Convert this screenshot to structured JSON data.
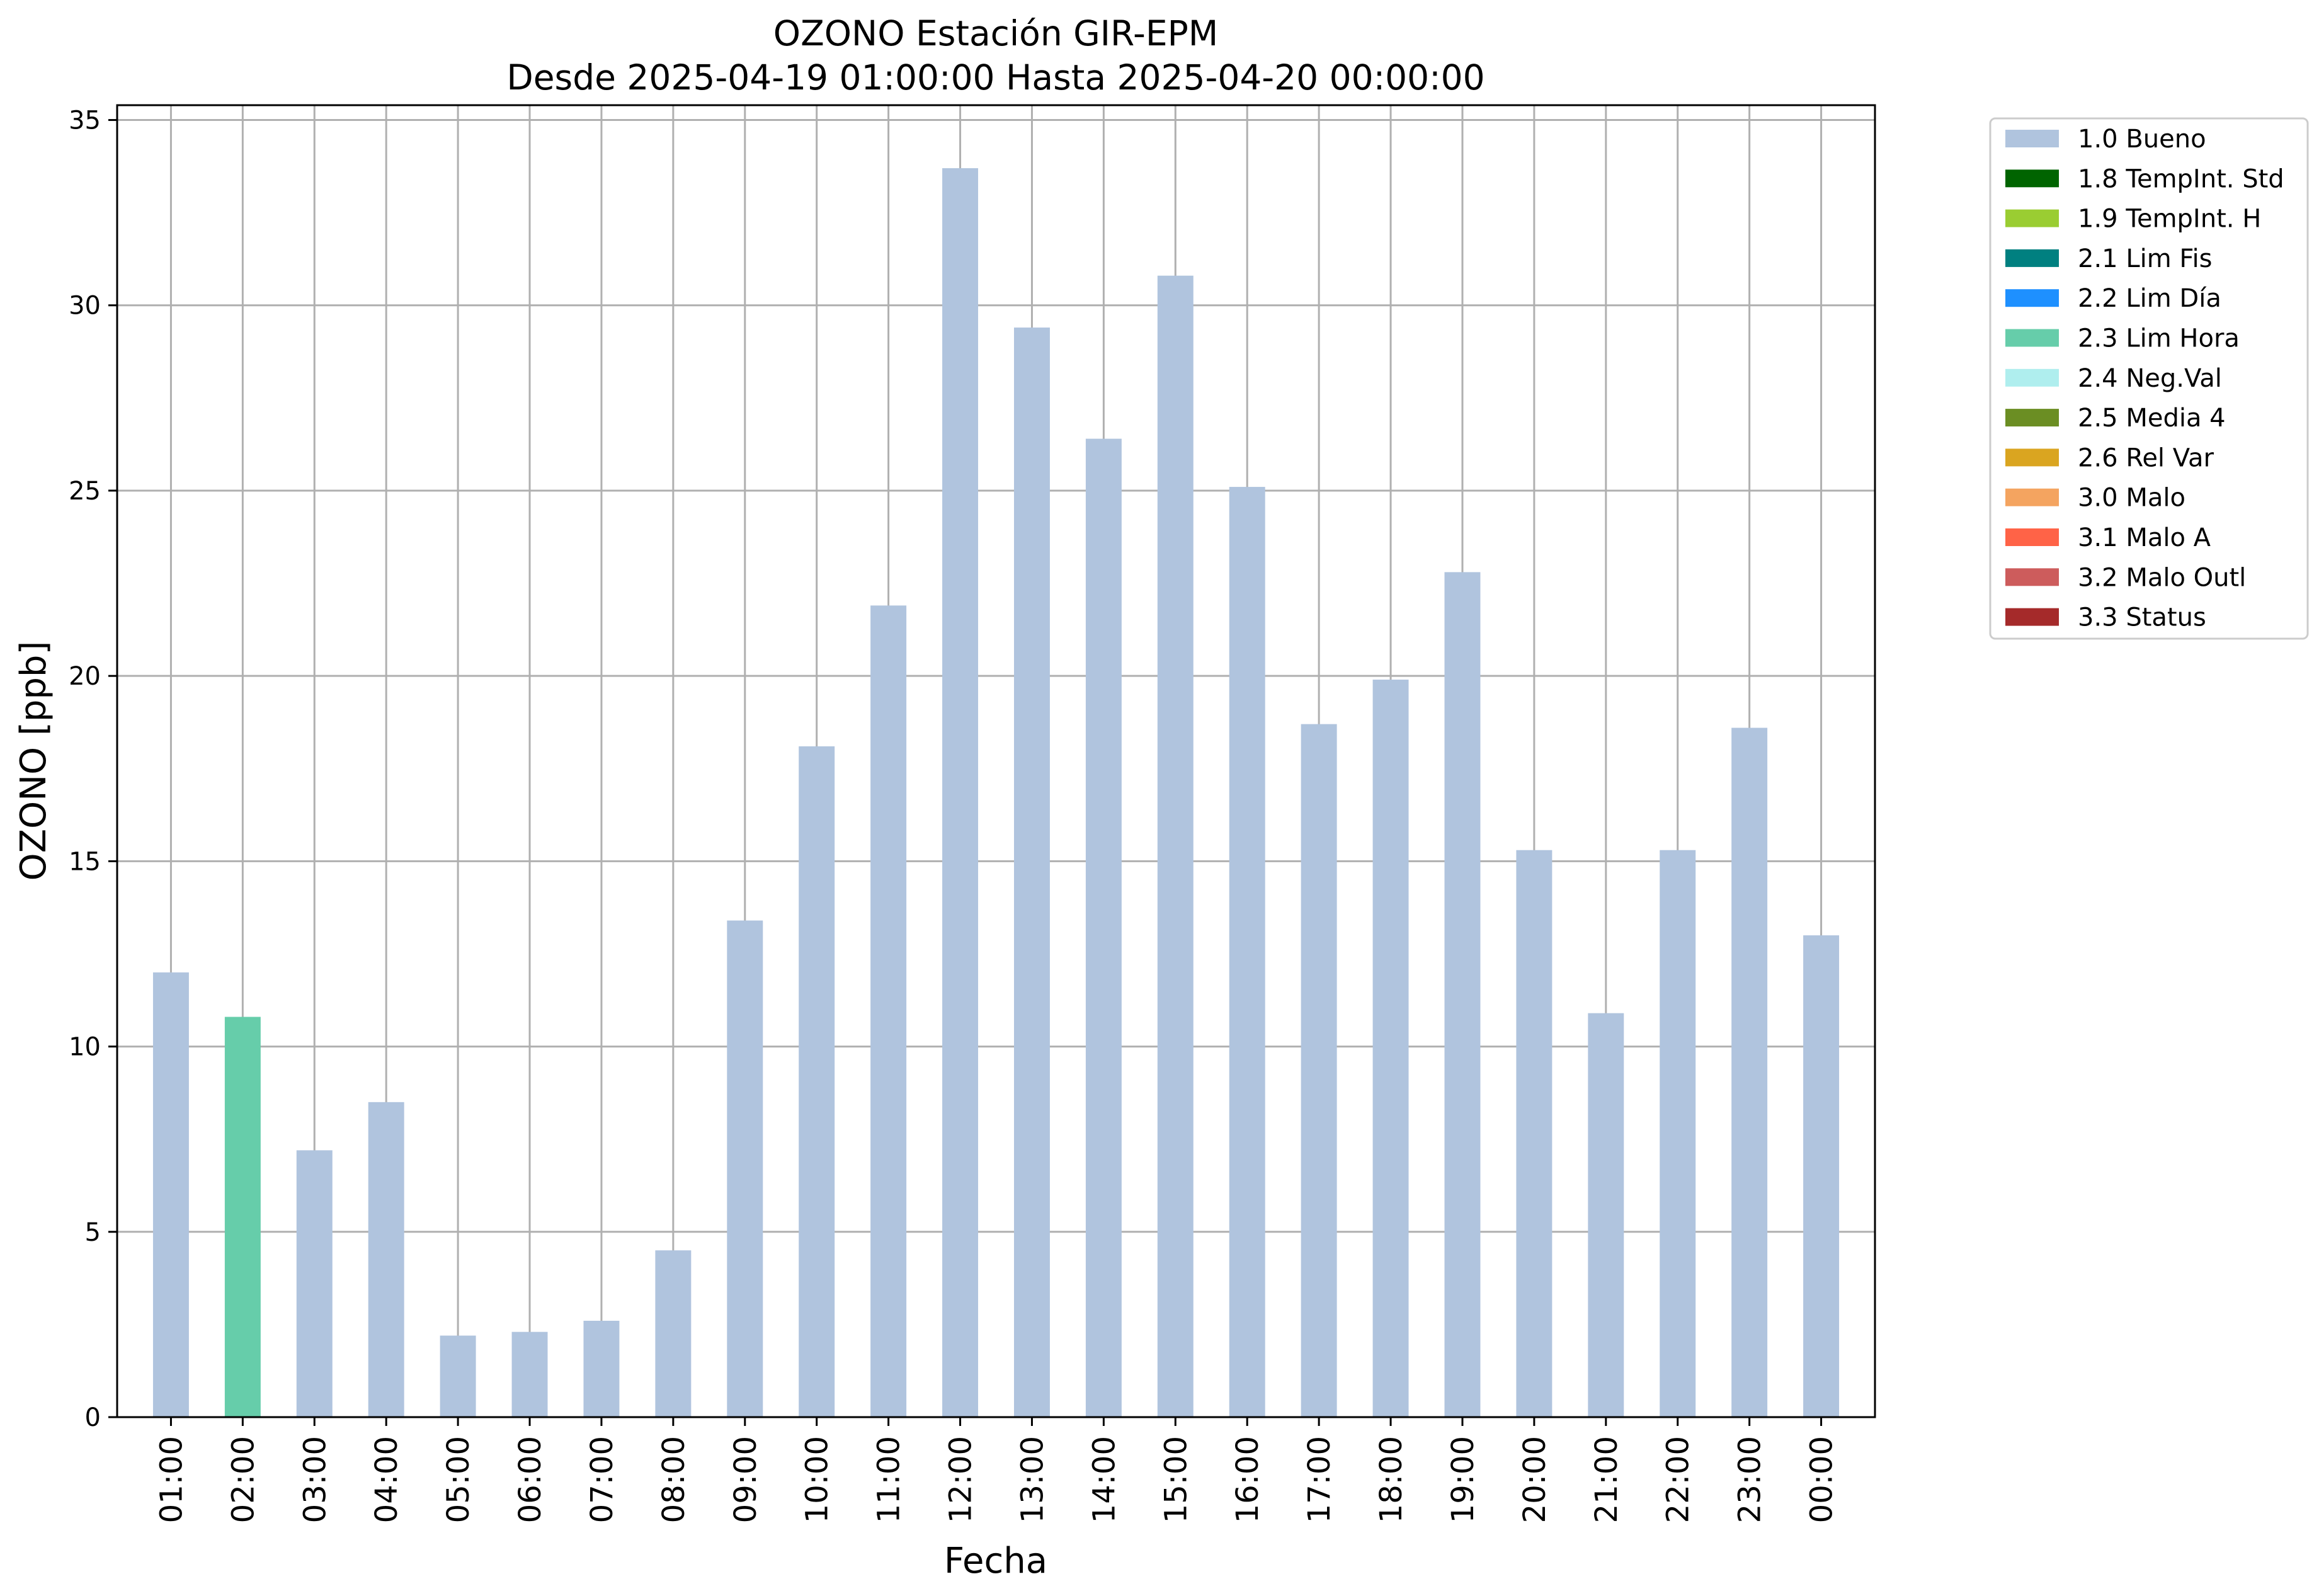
{
  "chart_data": {
    "type": "bar",
    "title": "OZONO Estación GIR-EPM",
    "subtitle": "Desde 2025-04-19 01:00:00 Hasta 2025-04-20 00:00:00",
    "xlabel": "Fecha",
    "ylabel": "OZONO [ppb]",
    "ylim": [
      0,
      35.4
    ],
    "yticks": [
      0,
      5,
      10,
      15,
      20,
      25,
      30,
      35
    ],
    "grid": true,
    "legend_position": "outside-top-right",
    "categories": [
      "01:00",
      "02:00",
      "03:00",
      "04:00",
      "05:00",
      "06:00",
      "07:00",
      "08:00",
      "09:00",
      "10:00",
      "11:00",
      "12:00",
      "13:00",
      "14:00",
      "15:00",
      "16:00",
      "17:00",
      "18:00",
      "19:00",
      "20:00",
      "21:00",
      "22:00",
      "23:00",
      "00:00"
    ],
    "values": [
      12.0,
      10.8,
      7.2,
      8.5,
      2.2,
      2.3,
      2.6,
      4.5,
      13.4,
      18.1,
      21.9,
      33.7,
      29.4,
      26.4,
      30.8,
      25.1,
      18.7,
      19.9,
      22.8,
      15.3,
      10.9,
      15.3,
      18.6,
      13.0
    ],
    "flags": [
      "1.0 Bueno",
      "2.3 Lim Hora",
      "1.0 Bueno",
      "1.0 Bueno",
      "1.0 Bueno",
      "1.0 Bueno",
      "1.0 Bueno",
      "1.0 Bueno",
      "1.0 Bueno",
      "1.0 Bueno",
      "1.0 Bueno",
      "1.0 Bueno",
      "1.0 Bueno",
      "1.0 Bueno",
      "1.0 Bueno",
      "1.0 Bueno",
      "1.0 Bueno",
      "1.0 Bueno",
      "1.0 Bueno",
      "1.0 Bueno",
      "1.0 Bueno",
      "1.0 Bueno",
      "1.0 Bueno",
      "1.0 Bueno"
    ],
    "legend": [
      {
        "label": "1.0 Bueno",
        "color": "#b0c4de"
      },
      {
        "label": "1.8 TempInt. Std",
        "color": "#006400"
      },
      {
        "label": "1.9 TempInt. H",
        "color": "#9acd32"
      },
      {
        "label": "2.1 Lim Fis",
        "color": "#008080"
      },
      {
        "label": "2.2 Lim Día",
        "color": "#1e90ff"
      },
      {
        "label": "2.3 Lim Hora",
        "color": "#66cdaa"
      },
      {
        "label": "2.4 Neg.Val",
        "color": "#afeeee"
      },
      {
        "label": "2.5 Media 4",
        "color": "#6b8e23"
      },
      {
        "label": "2.6 Rel Var",
        "color": "#daa520"
      },
      {
        "label": "3.0 Malo",
        "color": "#f4a460"
      },
      {
        "label": "3.1 Malo A",
        "color": "#ff6347"
      },
      {
        "label": "3.2 Malo Outl",
        "color": "#cd5c5c"
      },
      {
        "label": "3.3 Status",
        "color": "#a52a2a"
      }
    ]
  }
}
